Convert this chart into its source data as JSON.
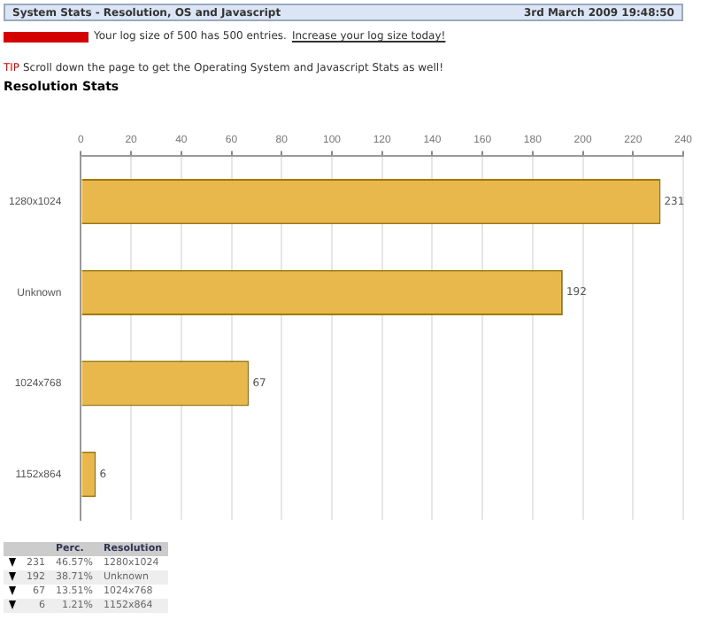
{
  "chart_data": {
    "type": "bar",
    "orientation": "horizontal",
    "title": "Resolution Stats",
    "categories": [
      "1280x1024",
      "Unknown",
      "1024x768",
      "1152x864"
    ],
    "values": [
      231,
      192,
      67,
      6
    ],
    "color": "#e8b84c",
    "xlim": [
      0,
      240
    ],
    "xticks": [
      0,
      20,
      40,
      60,
      80,
      100,
      120,
      140,
      160,
      180,
      200,
      220,
      240
    ],
    "grid": "x",
    "data_labels": true,
    "legend": false,
    "annotations": [
      "System Stats - Resolution, OS and Javascript",
      "3rd March 2009 19:48:50",
      "Your log size of 500 has 500 entries.",
      "Increase your log size today!",
      "TIP",
      "Scroll down the page to get the Operating System and Javascript Stats as well!",
      "Perc.",
      "Resolution",
      "231",
      "46.57%",
      "1280x1024",
      "192",
      "38.71%",
      "Unknown",
      "67",
      "13.51%",
      "1024x768",
      "6",
      "1.21%",
      "1152x864"
    ]
  }
}
